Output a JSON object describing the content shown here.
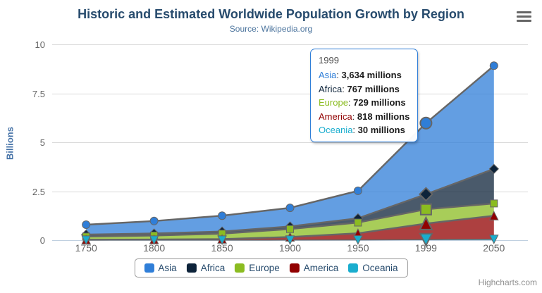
{
  "chart_data": {
    "type": "area",
    "stacking": "normal",
    "title": "Historic and Estimated Worldwide Population Growth by Region",
    "subtitle": "Source: Wikipedia.org",
    "categories": [
      "1750",
      "1800",
      "1850",
      "1900",
      "1950",
      "1999",
      "2050"
    ],
    "unit": "millions",
    "series": [
      {
        "name": "Asia",
        "color": "#2f7ed8",
        "marker": "circle",
        "values": [
          502,
          635,
          809,
          947,
          1402,
          3634,
          5268
        ]
      },
      {
        "name": "Africa",
        "color": "#0d233a",
        "marker": "diamond",
        "values": [
          106,
          107,
          111,
          133,
          221,
          767,
          1766
        ]
      },
      {
        "name": "Europe",
        "color": "#8bbc21",
        "marker": "square",
        "values": [
          163,
          203,
          276,
          408,
          547,
          729,
          628
        ]
      },
      {
        "name": "America",
        "color": "#910000",
        "marker": "triangle",
        "values": [
          18,
          31,
          54,
          156,
          339,
          818,
          1201
        ]
      },
      {
        "name": "Oceania",
        "color": "#1aadce",
        "marker": "triangle-down",
        "values": [
          2,
          2,
          2,
          6,
          13,
          30,
          46
        ]
      }
    ],
    "yaxis": {
      "title": "Billions",
      "ticks": [
        0,
        2.5,
        5,
        7.5,
        10
      ],
      "max": 10
    },
    "xaxis": {
      "tick_labels": [
        "1750",
        "1800",
        "1850",
        "1900",
        "1950",
        "1999",
        "2050"
      ]
    },
    "hover_index": 5,
    "fill_opacity": 0.75,
    "legend_position": "bottom-center",
    "grid": true,
    "style": {
      "line_color": "#666666",
      "grid_color": "#d9d9d9",
      "axis_line_color": "#c0d0e0",
      "label_color": "#666666",
      "title_color": "#274b6d",
      "subtitle_color": "#4d759e",
      "yaxis_title_color": "#4572a7",
      "legend_text_color": "#274b6d"
    }
  },
  "tooltip": {
    "header": "1999",
    "rows": [
      {
        "name": "Asia",
        "color": "#2f7ed8",
        "value": "3,634 millions"
      },
      {
        "name": "Africa",
        "color": "#0d233a",
        "value": "767 millions"
      },
      {
        "name": "Europe",
        "color": "#8bbc21",
        "value": "729 millions"
      },
      {
        "name": "America",
        "color": "#910000",
        "value": "818 millions"
      },
      {
        "name": "Oceania",
        "color": "#1aadce",
        "value": "30 millions"
      }
    ]
  },
  "legend": {
    "items": [
      "Asia",
      "Africa",
      "Europe",
      "America",
      "Oceania"
    ]
  },
  "menu": {
    "icon": "hamburger-icon"
  },
  "credits": {
    "text": "Highcharts.com"
  }
}
